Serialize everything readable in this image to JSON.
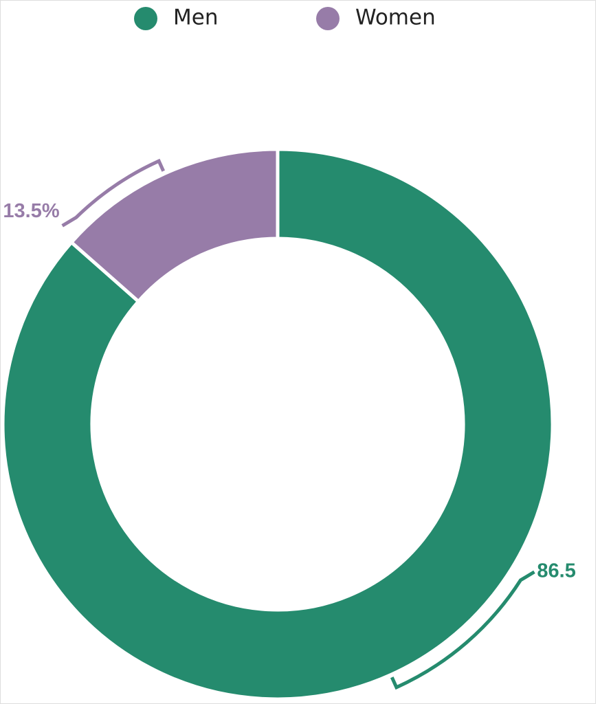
{
  "chart_data": {
    "type": "donut",
    "categories": [
      "Men",
      "Women"
    ],
    "values": [
      86.5,
      13.5
    ],
    "value_labels": [
      "86.5",
      "13.5%"
    ],
    "colors": [
      "#258b6e",
      "#977ca8"
    ],
    "legend": "top"
  }
}
